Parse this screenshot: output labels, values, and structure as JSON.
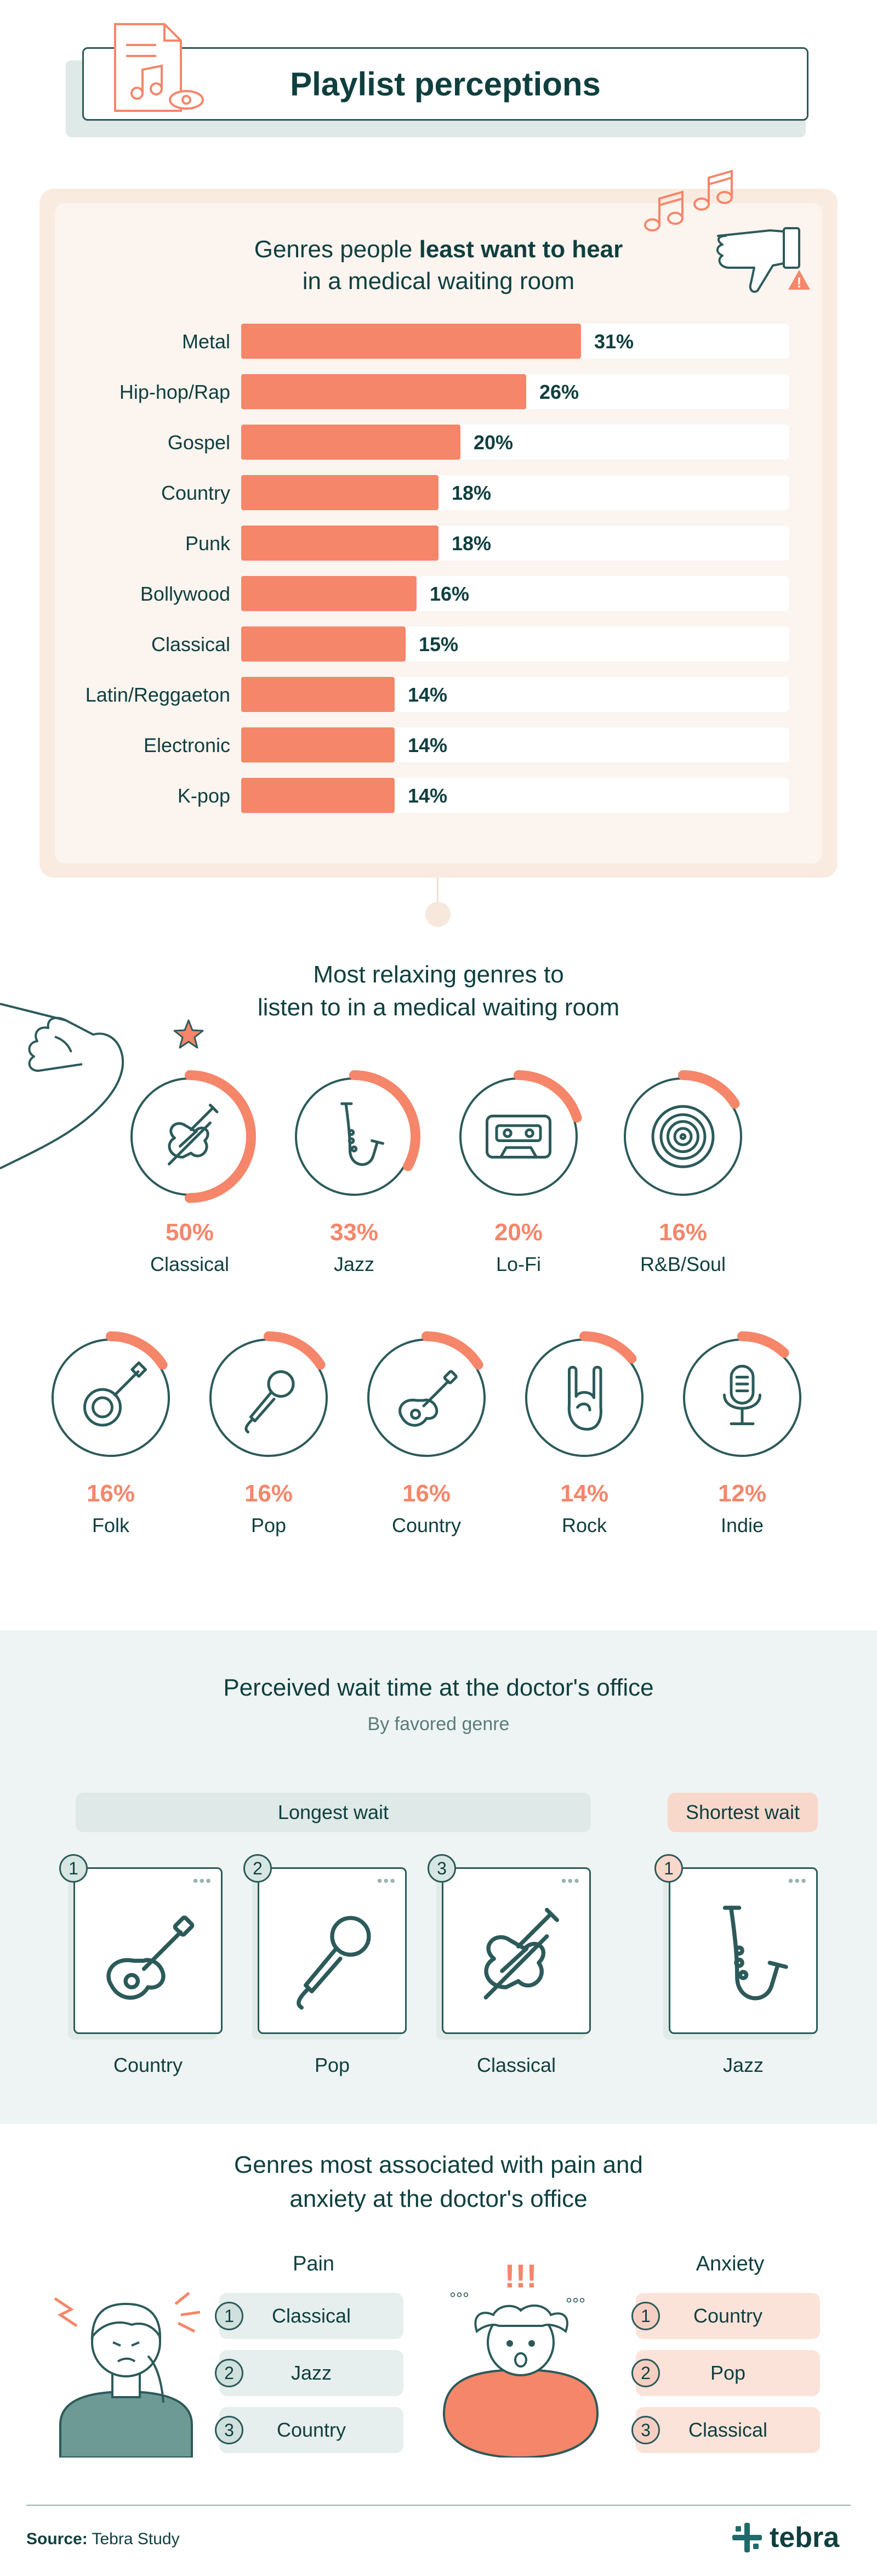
{
  "title": "Playlist perceptions",
  "colors": {
    "accent": "#f5866a",
    "dark": "#0f3f3f",
    "teal_light": "#dfe9e7",
    "peach": "#faebe1"
  },
  "least_want": {
    "title_pre": "Genres people ",
    "title_bold": "least want to hear",
    "title_line2": "in a medical waiting room"
  },
  "relaxing": {
    "title_line1": "Most relaxing genres to",
    "title_line2": "listen to in a medical waiting room"
  },
  "wait": {
    "title": "Perceived wait time at the doctor's office",
    "subtitle": "By favored genre",
    "longest_label": "Longest wait",
    "shortest_label": "Shortest wait",
    "longest": [
      {
        "rank": "1",
        "genre": "Country",
        "icon": "guitar-icon"
      },
      {
        "rank": "2",
        "genre": "Pop",
        "icon": "microphone-icon"
      },
      {
        "rank": "3",
        "genre": "Classical",
        "icon": "violin-icon"
      }
    ],
    "shortest": [
      {
        "rank": "1",
        "genre": "Jazz",
        "icon": "saxophone-icon"
      }
    ]
  },
  "pain_anxiety": {
    "title_line1": "Genres most associated with pain and",
    "title_line2": "anxiety at the doctor's office",
    "pain_label": "Pain",
    "anxiety_label": "Anxiety",
    "pain": [
      {
        "rank": "1",
        "genre": "Classical"
      },
      {
        "rank": "2",
        "genre": "Jazz"
      },
      {
        "rank": "3",
        "genre": "Country"
      }
    ],
    "anxiety": [
      {
        "rank": "1",
        "genre": "Country"
      },
      {
        "rank": "2",
        "genre": "Pop"
      },
      {
        "rank": "3",
        "genre": "Classical"
      }
    ]
  },
  "footer": {
    "source_label": "Source:",
    "source_value": " Tebra Study",
    "brand": "tebra"
  },
  "chart_data": [
    {
      "type": "bar",
      "orientation": "horizontal",
      "title": "Genres people least want to hear in a medical waiting room",
      "categories": [
        "Metal",
        "Hip-hop/Rap",
        "Gospel",
        "Country",
        "Punk",
        "Bollywood",
        "Classical",
        "Latin/Reggaeton",
        "Electronic",
        "K-pop"
      ],
      "values": [
        31,
        26,
        20,
        18,
        18,
        16,
        15,
        14,
        14,
        14
      ],
      "value_labels": [
        "31%",
        "26%",
        "20%",
        "18%",
        "18%",
        "16%",
        "15%",
        "14%",
        "14%",
        "14%"
      ],
      "xlim": [
        0,
        50
      ],
      "grid": false
    },
    {
      "type": "pie",
      "style": "progress-ring",
      "title": "Most relaxing genres to listen to in a medical waiting room",
      "categories": [
        "Classical",
        "Jazz",
        "Lo-Fi",
        "R&B/Soul",
        "Folk",
        "Pop",
        "Country",
        "Rock",
        "Indie"
      ],
      "values": [
        50,
        33,
        20,
        16,
        16,
        16,
        16,
        14,
        12
      ],
      "value_labels": [
        "50%",
        "33%",
        "20%",
        "16%",
        "16%",
        "16%",
        "16%",
        "14%",
        "12%"
      ],
      "icons": [
        "violin-icon",
        "saxophone-icon",
        "cassette-icon",
        "vinyl-record-icon",
        "banjo-icon",
        "microphone-icon",
        "guitar-icon",
        "rock-hand-icon",
        "studio-mic-icon"
      ]
    }
  ]
}
